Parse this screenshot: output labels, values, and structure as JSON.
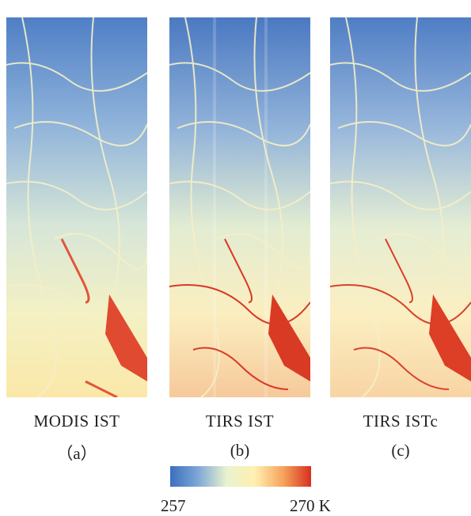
{
  "panels": [
    {
      "id": "a",
      "title": "MODIS IST",
      "label": "（a）"
    },
    {
      "id": "b",
      "title": "TIRS IST",
      "label": "(b)"
    },
    {
      "id": "c",
      "title": "TIRS ISTc",
      "label": "(c)"
    }
  ],
  "colorbar": {
    "min_label": "257",
    "max_label": "270 K",
    "colors": [
      "#3b6fbf",
      "#7fa8d6",
      "#e9f2cf",
      "#fff0b0",
      "#f6a45c",
      "#d7301f"
    ]
  }
}
